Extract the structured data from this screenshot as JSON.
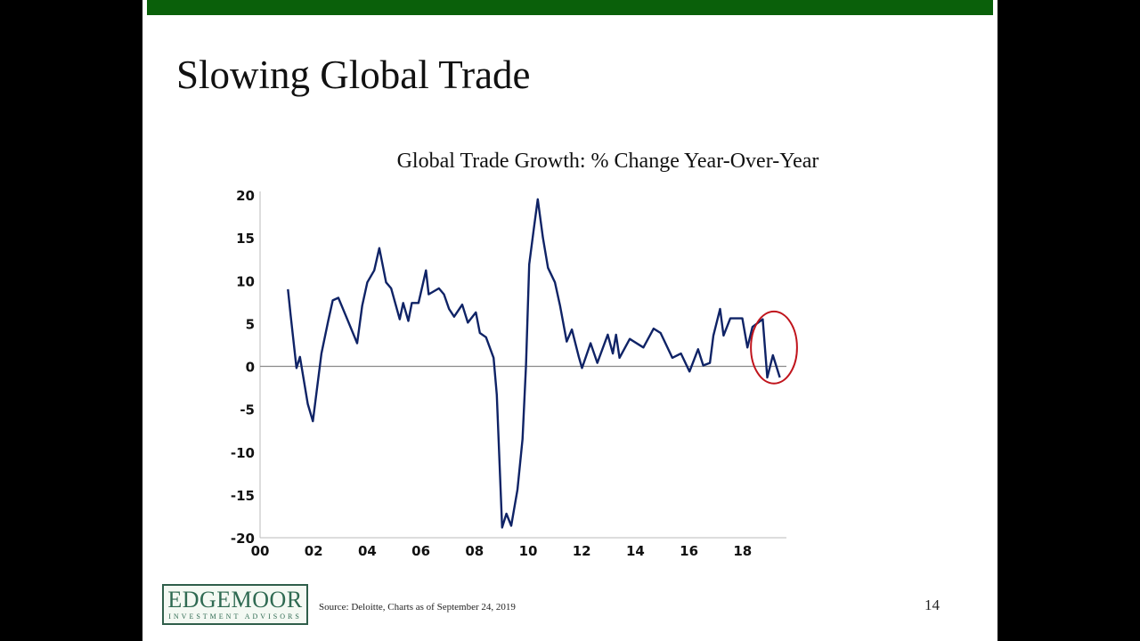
{
  "slide": {
    "title": "Slowing Global Trade",
    "source": "Source:  Deloitte, Charts as of September 24, 2019",
    "page_number": "14",
    "logo": {
      "name": "EDGEMOOR",
      "tagline": "INVESTMENT ADVISORS"
    },
    "colors": {
      "top_bar": "#0a600a",
      "line": "#0f2366",
      "highlight": "#c0141c",
      "zero_line": "#8a8a8a"
    }
  },
  "chart_data": {
    "type": "line",
    "title": "Global Trade Growth: % Change Year-Over-Year",
    "xlabel": "",
    "ylabel": "",
    "xlim": [
      2000,
      2019.8
    ],
    "ylim": [
      -20,
      20
    ],
    "xticks": [
      {
        "v": 2000,
        "label": "00"
      },
      {
        "v": 2002,
        "label": "02"
      },
      {
        "v": 2004,
        "label": "04"
      },
      {
        "v": 2006,
        "label": "06"
      },
      {
        "v": 2008,
        "label": "08"
      },
      {
        "v": 2010,
        "label": "10"
      },
      {
        "v": 2012,
        "label": "12"
      },
      {
        "v": 2014,
        "label": "14"
      },
      {
        "v": 2016,
        "label": "16"
      },
      {
        "v": 2018,
        "label": "18"
      }
    ],
    "yticks": [
      20,
      15,
      10,
      5,
      0,
      -5,
      -10,
      -15,
      -20
    ],
    "grid": false,
    "zero_line": true,
    "series": [
      {
        "x": [
          2001.04,
          2001.14,
          2001.36,
          2001.49,
          2001.78,
          2001.97,
          2002.29,
          2002.54,
          2002.71,
          2002.92,
          2003.24,
          2003.62,
          2003.81,
          2004.0,
          2004.26,
          2004.45,
          2004.7,
          2004.89,
          2005.21,
          2005.34,
          2005.53,
          2005.66,
          2005.91,
          2006.19,
          2006.29,
          2006.67,
          2006.86,
          2007.05,
          2007.24,
          2007.54,
          2007.75,
          2008.05,
          2008.2,
          2008.43,
          2008.71,
          2008.83,
          2009.03,
          2009.19,
          2009.37,
          2009.6,
          2009.79,
          2009.92,
          2010.04,
          2010.21,
          2010.36,
          2010.55,
          2010.74,
          2011.0,
          2011.19,
          2011.44,
          2011.63,
          2011.89,
          2012.01,
          2012.33,
          2012.58,
          2012.97,
          2013.16,
          2013.28,
          2013.41,
          2013.79,
          2014.3,
          2014.68,
          2014.94,
          2015.38,
          2015.7,
          2016.02,
          2016.34,
          2016.53,
          2016.78,
          2016.91,
          2017.16,
          2017.29,
          2017.54,
          2017.99,
          2018.18,
          2018.37,
          2018.75,
          2018.92,
          2019.13,
          2019.39
        ],
        "y": [
          9.0,
          6.0,
          -0.2,
          1.1,
          -4.4,
          -6.4,
          1.5,
          5.3,
          7.7,
          8.0,
          5.6,
          2.7,
          7.1,
          9.8,
          11.2,
          13.8,
          9.8,
          9.1,
          5.5,
          7.4,
          5.3,
          7.4,
          7.4,
          11.2,
          8.4,
          9.1,
          8.4,
          6.7,
          5.8,
          7.2,
          5.1,
          6.3,
          3.9,
          3.4,
          1.0,
          -3.3,
          -18.8,
          -17.2,
          -18.6,
          -14.4,
          -8.5,
          0.1,
          11.9,
          16.0,
          19.5,
          15.0,
          11.5,
          9.8,
          7.1,
          2.9,
          4.3,
          1.1,
          -0.2,
          2.7,
          0.4,
          3.7,
          1.5,
          3.7,
          1.0,
          3.2,
          2.2,
          4.4,
          3.9,
          1.0,
          1.5,
          -0.6,
          2.0,
          0.1,
          0.4,
          3.6,
          6.7,
          3.6,
          5.6,
          5.6,
          2.2,
          4.6,
          5.5,
          -1.3,
          1.3,
          -1.3
        ]
      }
    ],
    "annotations": [
      {
        "type": "ellipse",
        "cx": 2019.17,
        "cy": 2.2,
        "rx": 0.86,
        "ry": 4.2
      }
    ]
  }
}
